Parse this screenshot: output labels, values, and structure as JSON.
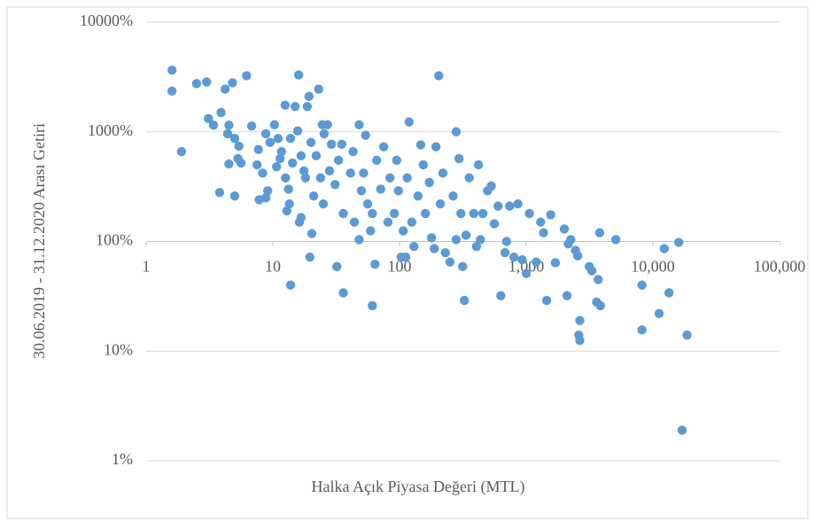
{
  "chart_data": {
    "type": "scatter",
    "xlabel": "Halka Açık Piyasa Değeri (MTL)",
    "ylabel": "30.06.2019 - 31.12.2020  Arası Getiri",
    "xscale": "log",
    "yscale": "log",
    "grid": true,
    "color": "#5b9bd5",
    "xlim": [
      1,
      100000
    ],
    "xticks": [
      1,
      10,
      100,
      {
        "value": 1000,
        "label": "1,000"
      },
      {
        "value": 10000,
        "label": "10,000"
      },
      {
        "value": 100000,
        "label": "100,000"
      }
    ],
    "ylim": [
      1,
      10000
    ],
    "yticks": [
      {
        "value": 10000,
        "label": "10000%"
      },
      {
        "value": 1000,
        "label": "1000%"
      },
      {
        "value": 100,
        "label": "100%"
      },
      {
        "value": 10,
        "label": "10%"
      },
      {
        "value": 1,
        "label": "1%"
      }
    ],
    "x": [
      1.6,
      1.6,
      1.9,
      2.5,
      3.0,
      3.1,
      3.4,
      3.9,
      4.2,
      4.8,
      4.5,
      3.8,
      5.0,
      4.4,
      5.0,
      5.4,
      5.3,
      5.6,
      4.5,
      6.2,
      6.8,
      7.7,
      7.5,
      8.3,
      8.8,
      9.5,
      8.8,
      7.8,
      9.1,
      10.3,
      11,
      11.4,
      10.7,
      11.7,
      12.5,
      12.6,
      13.8,
      14.3,
      13.3,
      13.5,
      12.9,
      13.8,
      15,
      16,
      15.7,
      16.7,
      17.6,
      18.1,
      16.7,
      16.2,
      18.7,
      19.3,
      20,
      19.6,
      20.3,
      21,
      22,
      23,
      24.6,
      25.4,
      23.8,
      25,
      27,
      28,
      29,
      31,
      32,
      33,
      35,
      36,
      36,
      41,
      43,
      44,
      48,
      50,
      48,
      52,
      54,
      56,
      59,
      61,
      64,
      61,
      66,
      71,
      75,
      81,
      84,
      91,
      95,
      98,
      103,
      107,
      112,
      115,
      119,
      125,
      130,
      140,
      147,
      154,
      160,
      172,
      179,
      188,
      194,
      204,
      210,
      220,
      230,
      250,
      265,
      280,
      280,
      295,
      305,
      315,
      325,
      335,
      355,
      385,
      405,
      420,
      435,
      455,
      495,
      530,
      560,
      600,
      630,
      680,
      700,
      740,
      800,
      860,
      930,
      1000,
      1060,
      1200,
      1300,
      1370,
      1450,
      1560,
      1700,
      2000,
      2100,
      2150,
      2250,
      2450,
      2550,
      2650,
      2600,
      2650,
      3150,
      3300,
      3600,
      3800,
      3700,
      3850,
      5100,
      8200,
      8200,
      11200,
      12300,
      13400,
      16000,
      17000,
      18600
    ],
    "values": [
      3650,
      2350,
      660,
      2750,
      2850,
      1320,
      1150,
      1500,
      2450,
      2800,
      1150,
      280,
      260,
      960,
      870,
      740,
      570,
      520,
      510,
      3250,
      1130,
      690,
      500,
      420,
      960,
      800,
      250,
      240,
      290,
      1160,
      870,
      570,
      480,
      660,
      1750,
      380,
      870,
      520,
      300,
      220,
      190,
      40,
      1700,
      3300,
      1020,
      605,
      440,
      380,
      165,
      150,
      1700,
      2100,
      800,
      72,
      118,
      260,
      605,
      2450,
      1160,
      960,
      380,
      220,
      1160,
      440,
      770,
      330,
      59,
      550,
      770,
      180,
      34,
      420,
      660,
      150,
      104,
      290,
      1160,
      420,
      930,
      220,
      125,
      26,
      62,
      180,
      550,
      300,
      730,
      150,
      380,
      180,
      550,
      290,
      72,
      125,
      72,
      380,
      1230,
      150,
      90,
      260,
      760,
      500,
      180,
      345,
      108,
      86,
      730,
      3250,
      220,
      420,
      79,
      65,
      260,
      1000,
      104,
      570,
      180,
      59,
      29,
      114,
      380,
      180,
      90,
      500,
      104,
      180,
      290,
      320,
      145,
      210,
      32,
      79,
      100,
      210,
      72,
      220,
      68,
      51,
      180,
      65,
      150,
      120,
      29,
      175,
      64,
      130,
      32,
      95,
      104,
      83,
      74,
      19,
      14,
      12.5,
      59,
      54,
      28,
      120,
      45,
      26,
      104,
      40,
      15.6,
      22,
      86,
      34,
      98,
      1.9,
      14
    ]
  }
}
